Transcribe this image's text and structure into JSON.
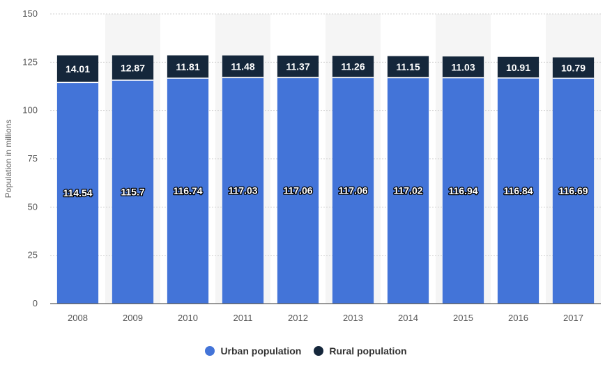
{
  "chart_data": {
    "type": "bar",
    "stacked": true,
    "categories": [
      "2008",
      "2009",
      "2010",
      "2011",
      "2012",
      "2013",
      "2014",
      "2015",
      "2016",
      "2017"
    ],
    "series": [
      {
        "name": "Urban population",
        "color": "#4374d8",
        "values": [
          114.54,
          115.7,
          116.74,
          117.03,
          117.06,
          117.06,
          117.02,
          116.94,
          116.84,
          116.69
        ]
      },
      {
        "name": "Rural population",
        "color": "#15273b",
        "values": [
          14.01,
          12.87,
          11.81,
          11.48,
          11.37,
          11.26,
          11.15,
          11.03,
          10.91,
          10.79
        ]
      }
    ],
    "ylabel": "Population in millions",
    "xlabel": "",
    "ylim": [
      0,
      150
    ],
    "yticks": [
      0,
      25,
      50,
      75,
      100,
      125,
      150
    ],
    "grid": true,
    "legend": "bottom-center"
  }
}
